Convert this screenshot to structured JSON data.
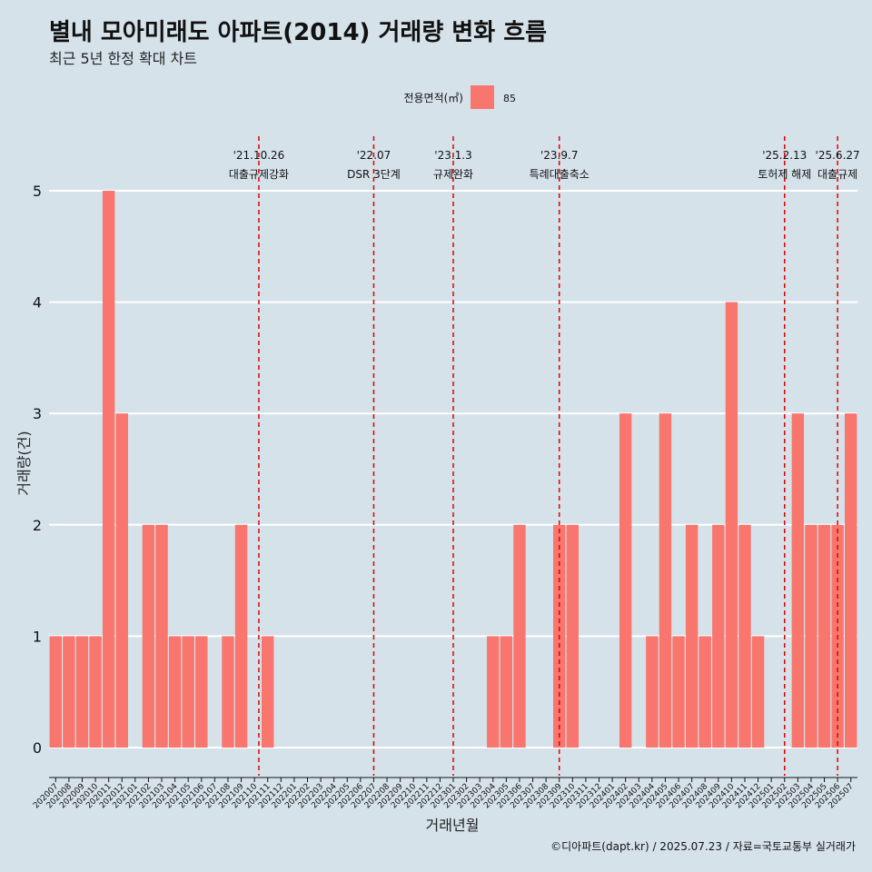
{
  "chart_data": {
    "type": "bar",
    "title": "별내 모아미래도 아파트(2014) 거래량 변화 흐름",
    "subtitle": "최근 5년 한정 확대 차트",
    "xlabel": "거래년월",
    "ylabel": "거래량(건)",
    "ylim": [
      0,
      5
    ],
    "y_ticks": [
      "0",
      "1",
      "2",
      "3",
      "4",
      "5"
    ],
    "grid": "horizontal",
    "legend": {
      "title": "전용면적(㎡)",
      "position": "top",
      "entries": [
        {
          "label": "85",
          "color": "#f8766d"
        }
      ]
    },
    "categories": [
      "202007",
      "202008",
      "202009",
      "202010",
      "202011",
      "202012",
      "202101",
      "202102",
      "202103",
      "202104",
      "202105",
      "202106",
      "202107",
      "202108",
      "202109",
      "202110",
      "202111",
      "202112",
      "202201",
      "202202",
      "202203",
      "202204",
      "202205",
      "202206",
      "202207",
      "202208",
      "202209",
      "202210",
      "202211",
      "202212",
      "202301",
      "202302",
      "202303",
      "202304",
      "202305",
      "202306",
      "202307",
      "202308",
      "202309",
      "202310",
      "202311",
      "202312",
      "202401",
      "202402",
      "202403",
      "202404",
      "202405",
      "202406",
      "202407",
      "202408",
      "202409",
      "202410",
      "202411",
      "202412",
      "202501",
      "202502",
      "202503",
      "202504",
      "202505",
      "202506",
      "202507"
    ],
    "series": [
      {
        "name": "85",
        "color": "#f8766d",
        "values": [
          1,
          1,
          1,
          1,
          5,
          3,
          0,
          2,
          2,
          1,
          1,
          1,
          0,
          1,
          2,
          0,
          1,
          0,
          0,
          0,
          0,
          0,
          0,
          0,
          0,
          0,
          0,
          0,
          0,
          0,
          0,
          0,
          0,
          1,
          1,
          2,
          0,
          0,
          2,
          2,
          0,
          0,
          0,
          3,
          0,
          1,
          3,
          1,
          2,
          1,
          2,
          4,
          2,
          1,
          0,
          0,
          3,
          2,
          2,
          2,
          3
        ]
      }
    ],
    "events": [
      {
        "date": "'21.10.26",
        "label": "대출규제강화",
        "at": "202110",
        "offset": 0.33
      },
      {
        "date": "'22.07",
        "label": "DSR 3단계",
        "at": "202207",
        "offset": 0.0
      },
      {
        "date": "'23.1.3",
        "label": "규제완화",
        "at": "202301",
        "offset": 0.0
      },
      {
        "date": "'23.9.7",
        "label": "특례대출축소",
        "at": "202309",
        "offset": 0.0
      },
      {
        "date": "'25.2.13",
        "label": "토허제 해제",
        "at": "202502",
        "offset": 0.0
      },
      {
        "date": "'25.6.27",
        "label": "대출규제",
        "at": "202506",
        "offset": 0.0
      }
    ],
    "event_line_color": "#e00000",
    "caption": "©디아파트(dapt.kr) / 2025.07.23 / 자료=국토교통부 실거래가"
  }
}
